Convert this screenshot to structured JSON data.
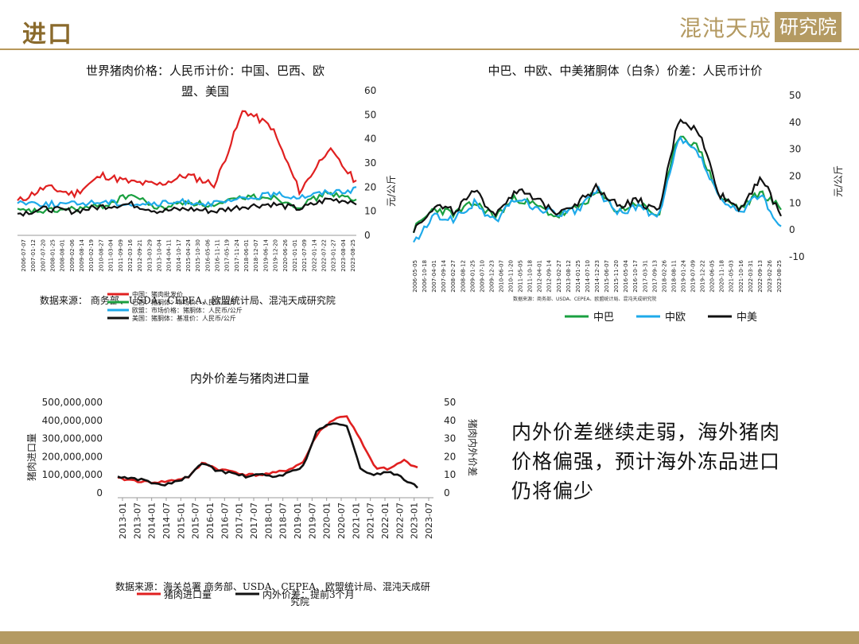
{
  "header": {
    "title": "进口",
    "logo_text": "混沌天成",
    "logo_box": "研究院",
    "accent": "#b49a62"
  },
  "conclusion": {
    "text": "内外价差继续走弱，海外猪肉价格偏强，预计海外冻品进口仍将偏少"
  },
  "chart_data": [
    {
      "type": "line",
      "title": "世界猪肉价格：人民币计价：中国、巴西、欧盟、美国",
      "title_line1": "世界猪肉价格：人民币计价：中国、巴西、欧",
      "title_line2": "盟、美国",
      "ylabel": "元/公斤",
      "ylim": [
        0,
        60
      ],
      "yticks": [
        "0",
        "10",
        "20",
        "30",
        "40",
        "50",
        "60"
      ],
      "xticks": [
        "2006-07-07",
        "2007-01-12",
        "2007-07-20",
        "2008-01-25",
        "2008-08-01",
        "2009-02-06",
        "2009-08-14",
        "2010-02-19",
        "2010-08-27",
        "2011-03-04",
        "2011-09-09",
        "2012-03-16",
        "2012-09-21",
        "2013-03-29",
        "2013-10-04",
        "2014-04-11",
        "2014-10-17",
        "2015-04-24",
        "2015-10-30",
        "2016-05-06",
        "2016-11-11",
        "2017-05-19",
        "2017-11-24",
        "2018-06-01",
        "2018-12-07",
        "2019-06-14",
        "2019-12-20",
        "2020-06-26",
        "2021-01-01",
        "2021-07-09",
        "2022-01-14",
        "2022-07-22",
        "2023-01-27",
        "2023-08-04",
        "2023-08-25"
      ],
      "source": "数据来源： 商务部、USDA、CEPEA、欧盟统计局、混沌天成研究院",
      "legend_lines": [
        "中国：猪肉批发价",
        "巴西：猪胴体：市场价：人民币/公斤",
        "欧盟：市场价格：猪胴体：人民币/公斤",
        "美国：猪胴体：基准价：人民币/公斤"
      ],
      "x": [
        "2006",
        "2008",
        "2010",
        "2012",
        "2014",
        "2016",
        "2018",
        "2019",
        "2020",
        "2021",
        "2022",
        "2023",
        "2023-08"
      ],
      "series": [
        {
          "color": "#e02020",
          "values": [
            14,
            20,
            17,
            25,
            22,
            21,
            25,
            21,
            52,
            45,
            18,
            36,
            22
          ]
        },
        {
          "color": "#1aa040",
          "values": [
            10,
            10,
            11,
            12,
            17,
            11,
            14,
            12,
            16,
            16,
            12,
            18,
            14
          ]
        },
        {
          "color": "#1eaaea",
          "values": [
            14,
            13,
            13,
            14,
            13,
            13,
            14,
            13,
            15,
            17,
            16,
            18,
            19
          ]
        },
        {
          "color": "#111111",
          "values": [
            9,
            11,
            10,
            12,
            13,
            10,
            11,
            10,
            12,
            13,
            11,
            15,
            14
          ]
        }
      ]
    },
    {
      "type": "line",
      "title": "中巴、中欧、中美猪胴体（白条）价差：人民币计价",
      "ylabel": "元/公斤",
      "ylim": [
        -10,
        50
      ],
      "yticks": [
        "-10",
        "0",
        "10",
        "20",
        "30",
        "40",
        "50"
      ],
      "xticks": [
        "2006-05-05",
        "2006-10-18",
        "2007-04-01",
        "2007-09-14",
        "2008-02-27",
        "2008-08-12",
        "2009-01-25",
        "2009-07-10",
        "2009-12-23",
        "2010-06-07",
        "2010-11-20",
        "2011-05-05",
        "2011-10-18",
        "2012-04-01",
        "2012-09-14",
        "2013-02-27",
        "2013-08-12",
        "2014-01-25",
        "2014-07-10",
        "2014-12-23",
        "2015-06-07",
        "2015-11-20",
        "2016-05-04",
        "2016-10-17",
        "2017-03-31",
        "2017-09-13",
        "2018-02-26",
        "2018-08-11",
        "2019-01-24",
        "2019-07-09",
        "2019-12-22",
        "2020-06-05",
        "2020-11-18",
        "2021-05-03",
        "2021-10-16",
        "2022-03-31",
        "2022-09-13",
        "2023-02-26",
        "2023-08-25"
      ],
      "source": "数据来源：商务部、USDA、CEPEA、欧盟统计局、混沌天成研究院",
      "series": [
        {
          "name": "中巴",
          "color": "#1aa040",
          "values": [
            0,
            8,
            6,
            10,
            5,
            12,
            9,
            5,
            8,
            14,
            7,
            10,
            5,
            36,
            30,
            12,
            8,
            14,
            8
          ]
        },
        {
          "name": "中欧",
          "color": "#1eaaea",
          "values": [
            -5,
            5,
            4,
            10,
            3,
            12,
            8,
            6,
            7,
            15,
            6,
            9,
            4,
            34,
            28,
            11,
            6,
            14,
            0
          ]
        },
        {
          "name": "中美",
          "color": "#111111",
          "values": [
            0,
            9,
            7,
            14,
            6,
            15,
            11,
            7,
            10,
            16,
            9,
            11,
            6,
            42,
            36,
            13,
            8,
            20,
            5
          ]
        }
      ]
    },
    {
      "type": "line",
      "title": "内外价差与猪肉进口量",
      "ylabel_left": "猪肉进口量",
      "ylabel_right": "猪肉内外价差",
      "ylim_left": [
        0,
        500000000
      ],
      "ylim_right": [
        0,
        50
      ],
      "yticks_left": [
        "0",
        "100,000,000",
        "200,000,000",
        "300,000,000",
        "400,000,000",
        "500,000,000"
      ],
      "yticks_right": [
        "0",
        "10",
        "20",
        "30",
        "40",
        "50"
      ],
      "xticks": [
        "2013-01",
        "2013-07",
        "2014-01",
        "2014-07",
        "2015-01",
        "2015-07",
        "2016-01",
        "2016-07",
        "2017-01",
        "2017-07",
        "2018-01",
        "2018-07",
        "2019-01",
        "2019-07",
        "2020-01",
        "2020-07",
        "2021-01",
        "2021-07",
        "2022-01",
        "2022-07",
        "2023-01",
        "2023-07"
      ],
      "source_line1": "数据来源：海关总署 商务部、USDA、CEPEA、欧盟统计局、混沌天成研",
      "source_line2": "究院",
      "series": [
        {
          "name": "猪肉进口量",
          "color": "#e02020",
          "axis": "left",
          "values": [
            80000000,
            70000000,
            60000000,
            60000000,
            70000000,
            90000000,
            170000000,
            130000000,
            120000000,
            100000000,
            100000000,
            110000000,
            130000000,
            170000000,
            330000000,
            400000000,
            430000000,
            290000000,
            140000000,
            130000000,
            180000000,
            140000000
          ]
        },
        {
          "name": "内外价差：提前3个月",
          "color": "#111111",
          "axis": "right",
          "values": [
            9,
            8,
            7,
            4,
            6,
            9,
            17,
            12,
            11,
            9,
            10,
            9,
            11,
            15,
            35,
            38,
            38,
            13,
            10,
            12,
            8,
            3
          ]
        }
      ]
    }
  ]
}
